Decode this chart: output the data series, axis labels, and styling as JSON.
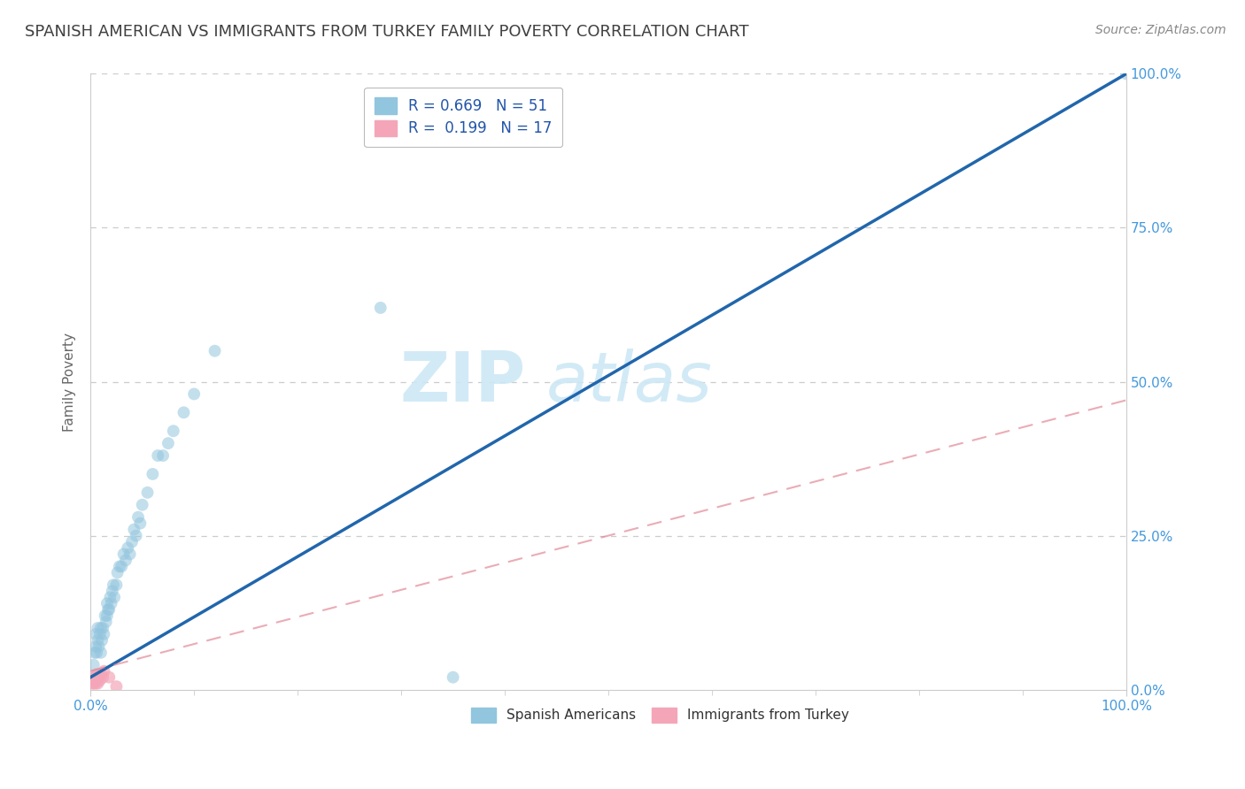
{
  "title": "SPANISH AMERICAN VS IMMIGRANTS FROM TURKEY FAMILY POVERTY CORRELATION CHART",
  "source": "Source: ZipAtlas.com",
  "ylabel": "Family Poverty",
  "legend_r1": "R = 0.669   N = 51",
  "legend_r2": "R =  0.199   N = 17",
  "blue_color": "#92c5de",
  "pink_color": "#f4a6b8",
  "line_blue": "#2166ac",
  "line_pink_dashed": "#e08090",
  "title_color": "#404040",
  "axis_label_color": "#666666",
  "tick_color": "#4499dd",
  "watermark_color": "#cde8f5",
  "blue_scatter_x": [
    0.003,
    0.004,
    0.005,
    0.005,
    0.006,
    0.007,
    0.007,
    0.008,
    0.009,
    0.01,
    0.01,
    0.011,
    0.012,
    0.013,
    0.014,
    0.015,
    0.016,
    0.016,
    0.017,
    0.018,
    0.019,
    0.02,
    0.021,
    0.022,
    0.023,
    0.025,
    0.026,
    0.028,
    0.03,
    0.032,
    0.034,
    0.036,
    0.038,
    0.04,
    0.042,
    0.044,
    0.046,
    0.048,
    0.05,
    0.055,
    0.06,
    0.065,
    0.07,
    0.075,
    0.08,
    0.09,
    0.1,
    0.12,
    0.28,
    0.35,
    1.0
  ],
  "blue_scatter_y": [
    0.04,
    0.06,
    0.07,
    0.09,
    0.06,
    0.08,
    0.1,
    0.07,
    0.09,
    0.06,
    0.1,
    0.08,
    0.1,
    0.09,
    0.12,
    0.11,
    0.12,
    0.14,
    0.13,
    0.13,
    0.15,
    0.14,
    0.16,
    0.17,
    0.15,
    0.17,
    0.19,
    0.2,
    0.2,
    0.22,
    0.21,
    0.23,
    0.22,
    0.24,
    0.26,
    0.25,
    0.28,
    0.27,
    0.3,
    0.32,
    0.35,
    0.38,
    0.38,
    0.4,
    0.42,
    0.45,
    0.48,
    0.55,
    0.62,
    0.02,
    1.0
  ],
  "pink_scatter_x": [
    0.002,
    0.003,
    0.004,
    0.004,
    0.005,
    0.005,
    0.006,
    0.006,
    0.007,
    0.007,
    0.008,
    0.009,
    0.01,
    0.012,
    0.013,
    0.018,
    0.025
  ],
  "pink_scatter_y": [
    0.01,
    0.01,
    0.015,
    0.02,
    0.01,
    0.02,
    0.015,
    0.025,
    0.01,
    0.02,
    0.02,
    0.015,
    0.025,
    0.02,
    0.03,
    0.02,
    0.005
  ],
  "blue_line_x": [
    0.0,
    1.0
  ],
  "blue_line_y": [
    0.02,
    1.0
  ],
  "pink_line_x": [
    0.0,
    1.0
  ],
  "pink_line_y": [
    0.03,
    0.47
  ],
  "xlim": [
    0.0,
    1.0
  ],
  "ylim": [
    0.0,
    1.0
  ],
  "xtick_pos": [
    0.0,
    1.0
  ],
  "xtick_labels": [
    "0.0%",
    "100.0%"
  ],
  "ytick_pos": [
    0.0,
    0.25,
    0.5,
    0.75,
    1.0
  ],
  "right_ytick_labels": [
    "0.0%",
    "25.0%",
    "50.0%",
    "75.0%",
    "100.0%"
  ],
  "grid_yticks": [
    0.25,
    0.5,
    0.75,
    1.0
  ],
  "grid_color": "#cccccc",
  "spine_color": "#cccccc",
  "bg_color": "#ffffff",
  "marker_size": 100,
  "marker_alpha": 0.55,
  "title_fontsize": 13,
  "source_fontsize": 10,
  "tick_fontsize": 11,
  "ylabel_fontsize": 11,
  "legend_fontsize": 12,
  "watermark_fontsize": 56
}
